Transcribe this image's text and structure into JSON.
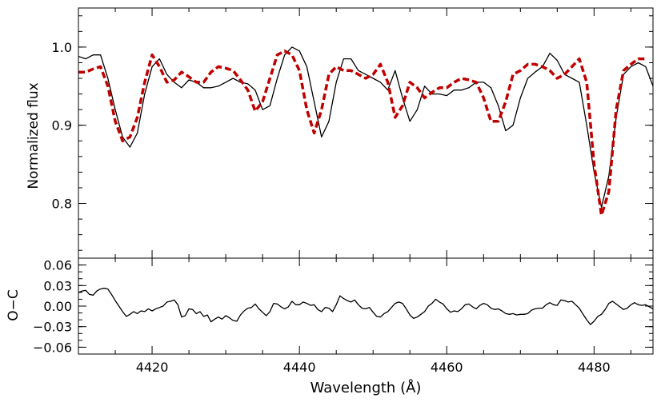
{
  "chart_data": [
    {
      "type": "line",
      "ylabel": "Normalized flux",
      "xlim": [
        4410,
        4488
      ],
      "ylim": [
        0.73,
        1.05
      ],
      "x_ticks": [
        4420,
        4440,
        4460,
        4480
      ],
      "x_tick_labels": [
        "",
        "",
        "",
        ""
      ],
      "y_ticks": [
        0.8,
        0.9,
        1.0
      ],
      "y_tick_labels": [
        "0.8",
        "0.9",
        "1.0"
      ],
      "series": [
        {
          "style": "solid",
          "color": "#000000",
          "x": [
            4410,
            4411,
            4412,
            4413,
            4414,
            4415,
            4416,
            4417,
            4418,
            4419,
            4420,
            4421,
            4422,
            4423,
            4424,
            4425,
            4426,
            4427,
            4428,
            4429,
            4430,
            4431,
            4432,
            4433,
            4434,
            4435,
            4436,
            4437,
            4438,
            4439,
            4440,
            4441,
            4442,
            4443,
            4444,
            4445,
            4446,
            4447,
            4448,
            4449,
            4450,
            4451,
            4452,
            4453,
            4454,
            4455,
            4456,
            4457,
            4458,
            4459,
            4460,
            4461,
            4462,
            4463,
            4464,
            4465,
            4466,
            4467,
            4468,
            4469,
            4470,
            4471,
            4472,
            4473,
            4474,
            4475,
            4476,
            4477,
            4478,
            4479,
            4480,
            4481,
            4482,
            4483,
            4484,
            4485,
            4486,
            4487,
            4488
          ],
          "y": [
            0.988,
            0.985,
            0.99,
            0.99,
            0.96,
            0.92,
            0.885,
            0.872,
            0.89,
            0.94,
            0.975,
            0.985,
            0.965,
            0.955,
            0.948,
            0.958,
            0.955,
            0.948,
            0.948,
            0.95,
            0.955,
            0.96,
            0.955,
            0.953,
            0.945,
            0.92,
            0.925,
            0.96,
            0.99,
            1.0,
            0.995,
            0.975,
            0.93,
            0.885,
            0.905,
            0.955,
            0.985,
            0.985,
            0.97,
            0.965,
            0.96,
            0.955,
            0.945,
            0.97,
            0.935,
            0.905,
            0.92,
            0.95,
            0.94,
            0.94,
            0.938,
            0.945,
            0.945,
            0.948,
            0.955,
            0.955,
            0.948,
            0.925,
            0.893,
            0.9,
            0.935,
            0.96,
            0.968,
            0.975,
            0.992,
            0.983,
            0.965,
            0.96,
            0.955,
            0.9,
            0.84,
            0.795,
            0.835,
            0.91,
            0.965,
            0.975,
            0.98,
            0.975,
            0.95
          ]
        },
        {
          "style": "dashed",
          "color": "#c00000",
          "x": [
            4410,
            4411,
            4412,
            4413,
            4414,
            4415,
            4416,
            4417,
            4418,
            4419,
            4420,
            4421,
            4422,
            4423,
            4424,
            4425,
            4426,
            4427,
            4428,
            4429,
            4430,
            4431,
            4432,
            4433,
            4434,
            4435,
            4436,
            4437,
            4438,
            4439,
            4440,
            4441,
            4442,
            4443,
            4444,
            4445,
            4446,
            4447,
            4448,
            4449,
            4450,
            4451,
            4452,
            4453,
            4454,
            4455,
            4456,
            4457,
            4458,
            4459,
            4460,
            4461,
            4462,
            4463,
            4464,
            4465,
            4466,
            4467,
            4468,
            4469,
            4470,
            4471,
            4472,
            4473,
            4474,
            4475,
            4476,
            4477,
            4478,
            4479,
            4480,
            4481,
            4482,
            4483,
            4484,
            4485,
            4486,
            4487
          ],
          "y": [
            0.968,
            0.968,
            0.972,
            0.975,
            0.95,
            0.905,
            0.88,
            0.885,
            0.91,
            0.955,
            0.99,
            0.975,
            0.955,
            0.958,
            0.968,
            0.962,
            0.955,
            0.955,
            0.968,
            0.975,
            0.973,
            0.97,
            0.958,
            0.945,
            0.918,
            0.93,
            0.96,
            0.99,
            0.995,
            0.99,
            0.97,
            0.92,
            0.89,
            0.92,
            0.965,
            0.975,
            0.97,
            0.97,
            0.965,
            0.96,
            0.965,
            0.978,
            0.955,
            0.91,
            0.925,
            0.955,
            0.948,
            0.935,
            0.942,
            0.948,
            0.948,
            0.955,
            0.96,
            0.958,
            0.955,
            0.935,
            0.905,
            0.905,
            0.93,
            0.965,
            0.97,
            0.978,
            0.978,
            0.975,
            0.97,
            0.96,
            0.965,
            0.975,
            0.985,
            0.955,
            0.85,
            0.785,
            0.815,
            0.92,
            0.97,
            0.978,
            0.985,
            0.985
          ]
        }
      ]
    },
    {
      "type": "line",
      "xlabel": "Wavelength (Å)",
      "ylabel": "O−C",
      "xlim": [
        4410,
        4488
      ],
      "ylim": [
        -0.07,
        0.07
      ],
      "x_ticks": [
        4420,
        4440,
        4460,
        4480
      ],
      "x_tick_labels": [
        "4420",
        "4440",
        "4460",
        "4480"
      ],
      "y_ticks": [
        -0.06,
        -0.03,
        0.0,
        0.03,
        0.06
      ],
      "y_tick_labels": [
        "−0.06",
        "−0.03",
        "0.00",
        "0.03",
        "0.06"
      ],
      "series": [
        {
          "style": "solid",
          "color": "#000000",
          "x": [
            4410,
            4410.5,
            4411,
            4411.5,
            4412,
            4412.5,
            4413,
            4413.5,
            4414,
            4414.5,
            4415,
            4415.5,
            4416,
            4416.5,
            4417,
            4417.5,
            4418,
            4418.5,
            4419,
            4419.5,
            4420,
            4420.5,
            4421,
            4421.5,
            4422,
            4422.5,
            4423,
            4423.5,
            4424,
            4424.5,
            4425,
            4425.5,
            4426,
            4426.5,
            4427,
            4427.5,
            4428,
            4428.5,
            4429,
            4429.5,
            4430,
            4430.5,
            4431,
            4431.5,
            4432,
            4432.5,
            4433,
            4433.5,
            4434,
            4434.5,
            4435,
            4435.5,
            4436,
            4436.5,
            4437,
            4437.5,
            4438,
            4438.5,
            4439,
            4439.5,
            4440,
            4440.5,
            4441,
            4441.5,
            4442,
            4442.5,
            4443,
            4443.5,
            4444,
            4444.5,
            4445,
            4445.5,
            4446,
            4446.5,
            4447,
            4447.5,
            4448,
            4448.5,
            4449,
            4449.5,
            4450,
            4450.5,
            4451,
            4451.5,
            4452,
            4452.5,
            4453,
            4453.5,
            4454,
            4454.5,
            4455,
            4455.5,
            4456,
            4456.5,
            4457,
            4457.5,
            4458,
            4458.5,
            4459,
            4459.5,
            4460,
            4460.5,
            4461,
            4461.5,
            4462,
            4462.5,
            4463,
            4463.5,
            4464,
            4464.5,
            4465,
            4465.5,
            4466,
            4466.5,
            4467,
            4467.5,
            4468,
            4468.5,
            4469,
            4469.5,
            4470,
            4470.5,
            4471,
            4471.5,
            4472,
            4472.5,
            4473,
            4473.5,
            4474,
            4474.5,
            4475,
            4475.5,
            4476,
            4476.5,
            4477,
            4477.5,
            4478,
            4478.5,
            4479,
            4479.5,
            4480,
            4480.5,
            4481,
            4481.5,
            4482,
            4482.5,
            4483,
            4483.5,
            4484,
            4484.5,
            4485,
            4485.5,
            4486,
            4486.5,
            4487,
            4487.5,
            4488
          ],
          "y": [
            0.02,
            0.022,
            0.023,
            0.017,
            0.016,
            0.022,
            0.025,
            0.026,
            0.025,
            0.017,
            0.008,
            0.0,
            -0.008,
            -0.015,
            -0.012,
            -0.008,
            -0.011,
            -0.007,
            -0.008,
            -0.004,
            -0.007,
            -0.004,
            -0.002,
            0.0,
            0.006,
            0.007,
            0.009,
            0.002,
            -0.016,
            -0.014,
            -0.004,
            -0.005,
            -0.011,
            -0.008,
            -0.015,
            -0.013,
            -0.023,
            -0.019,
            -0.016,
            -0.019,
            -0.014,
            -0.017,
            -0.021,
            -0.022,
            -0.013,
            -0.007,
            -0.003,
            -0.002,
            0.003,
            -0.004,
            -0.009,
            -0.014,
            -0.008,
            0.004,
            0.003,
            -0.001,
            -0.004,
            -0.001,
            0.007,
            0.002,
            0.002,
            0.006,
            0.004,
            0.001,
            0.002,
            -0.005,
            -0.008,
            -0.002,
            -0.003,
            -0.008,
            0.002,
            0.015,
            0.011,
            0.008,
            0.006,
            0.009,
            0.002,
            -0.003,
            -0.004,
            -0.002,
            -0.009,
            -0.015,
            -0.016,
            -0.011,
            -0.008,
            -0.002,
            0.004,
            0.006,
            0.004,
            -0.004,
            -0.013,
            -0.018,
            -0.016,
            -0.012,
            -0.008,
            0.0,
            0.004,
            0.01,
            0.006,
            0.003,
            -0.004,
            -0.009,
            -0.007,
            -0.008,
            -0.004,
            0.002,
            0.003,
            -0.001,
            -0.004,
            0.001,
            0.004,
            0.002,
            -0.003,
            -0.005,
            -0.004,
            -0.007,
            -0.011,
            -0.012,
            -0.011,
            -0.013,
            -0.012,
            -0.012,
            -0.011,
            -0.006,
            -0.004,
            -0.003,
            -0.003,
            0.002,
            0.005,
            0.002,
            0.001,
            0.009,
            0.008,
            0.006,
            0.007,
            0.002,
            -0.003,
            -0.012,
            -0.02,
            -0.027,
            -0.022,
            -0.015,
            -0.012,
            -0.005,
            0.004,
            0.007,
            0.003,
            -0.001,
            -0.005,
            -0.003,
            0.002,
            0.005,
            0.002,
            0.001,
            0.002,
            -0.001,
            -0.004
          ]
        }
      ]
    }
  ]
}
